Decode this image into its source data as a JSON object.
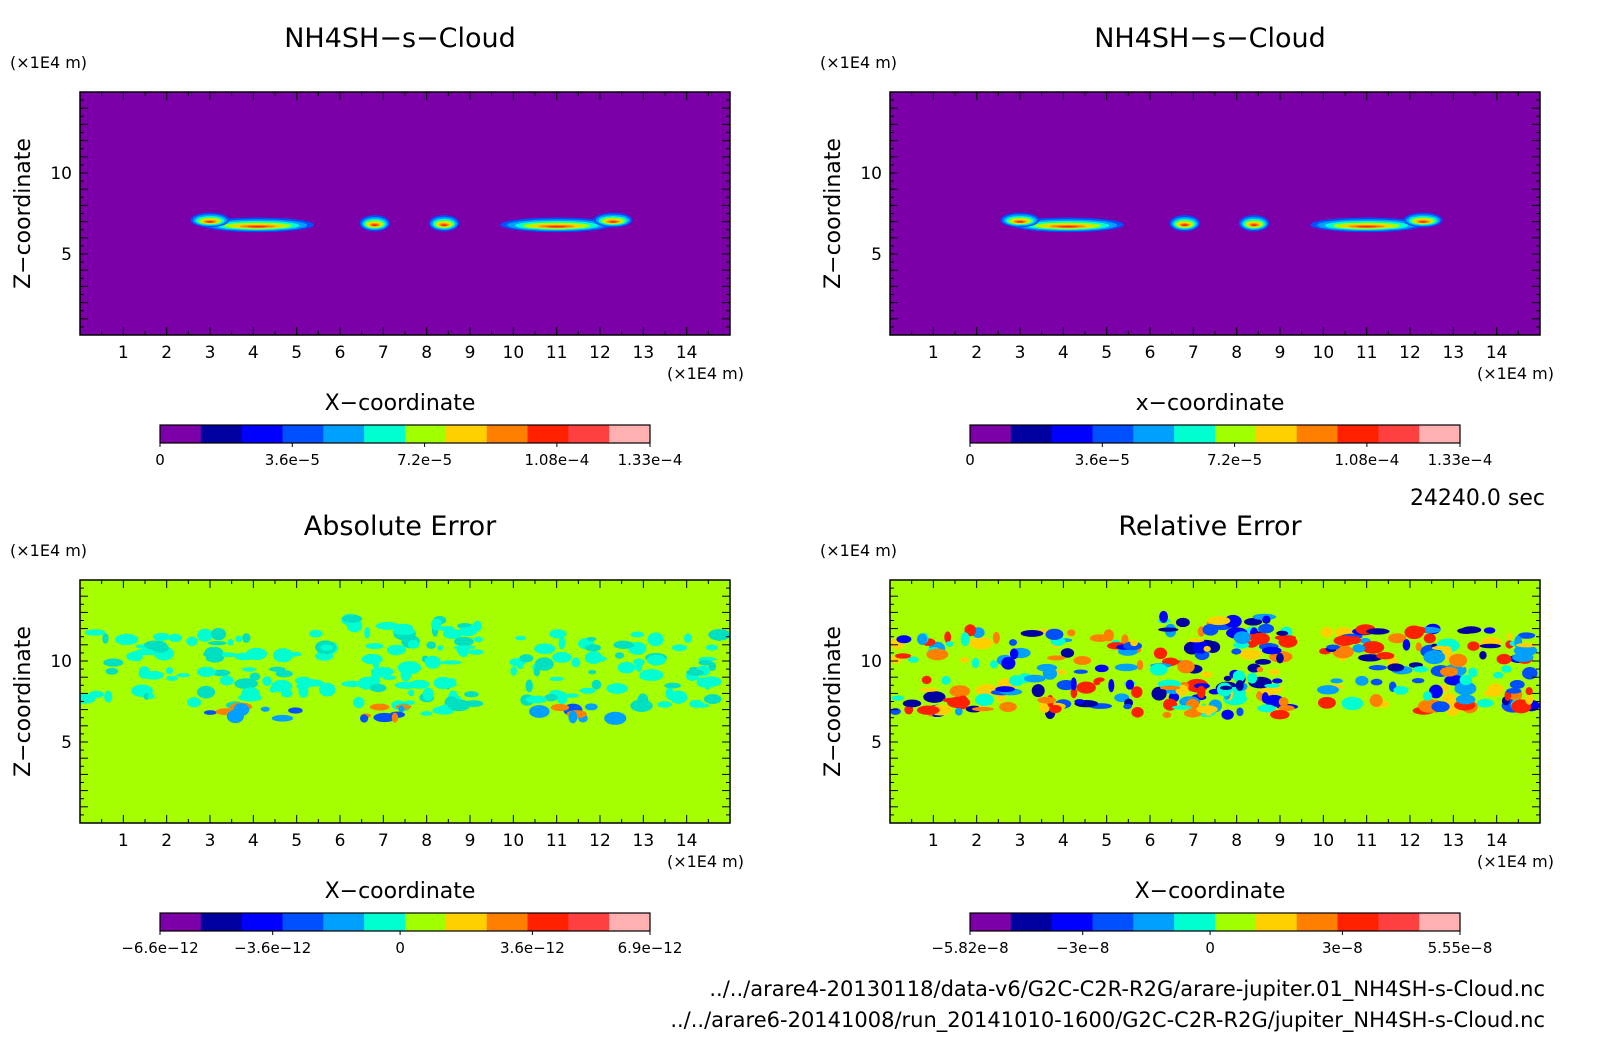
{
  "time_label": "24240.0 sec",
  "files": [
    "../../arare4-20130118/data-v6/G2C-C2R-R2G/arare-jupiter.01_NH4SH-s-Cloud.nc",
    "../../arare6-20141008/run_20141010-1600/G2C-C2R-R2G/jupiter_NH4SH-s-Cloud.nc"
  ],
  "colors": {
    "purple": "#7b00a8",
    "lime": "#a6ff00",
    "frame": "#000000"
  },
  "colorbar_palette": [
    "#7b00a8",
    "#0000a0",
    "#0000ff",
    "#0050ff",
    "#00a0ff",
    "#00ffd0",
    "#a0ff00",
    "#ffd000",
    "#ff8000",
    "#ff2000",
    "#ff4040",
    "#ffb0b0"
  ],
  "chart_data": [
    {
      "type": "heatmap",
      "title": "NH4SH−s−Cloud",
      "xlabel": "X−coordinate",
      "ylabel": "Z−coordinate",
      "x_unit": "(×1E4 m)",
      "y_unit": "(×1E4 m)",
      "xlim": [
        0,
        15
      ],
      "ylim": [
        0,
        15
      ],
      "xticks": [
        "1",
        "2",
        "3",
        "4",
        "5",
        "6",
        "7",
        "8",
        "9",
        "10",
        "11",
        "12",
        "13",
        "14"
      ],
      "yticks": [
        "5",
        "10"
      ],
      "background": "purple",
      "colorbar_ticks": [
        "0",
        "3.6e−5",
        "7.2e−5",
        "1.08e−4",
        "1.33e−4"
      ],
      "colorbar_range": [
        0,
        0.000133
      ]
    },
    {
      "type": "heatmap",
      "title": "NH4SH−s−Cloud",
      "xlabel": "x−coordinate",
      "ylabel": "Z−coordinate",
      "x_unit": "(×1E4 m)",
      "y_unit": "(×1E4 m)",
      "xlim": [
        0,
        15
      ],
      "ylim": [
        0,
        15
      ],
      "xticks": [
        "1",
        "2",
        "3",
        "4",
        "5",
        "6",
        "7",
        "8",
        "9",
        "10",
        "11",
        "12",
        "13",
        "14"
      ],
      "yticks": [
        "5",
        "10"
      ],
      "background": "purple",
      "colorbar_ticks": [
        "0",
        "3.6e−5",
        "7.2e−5",
        "1.08e−4",
        "1.33e−4"
      ],
      "colorbar_range": [
        0,
        0.000133
      ]
    },
    {
      "type": "heatmap",
      "title": "Absolute Error",
      "xlabel": "X−coordinate",
      "ylabel": "Z−coordinate",
      "x_unit": "(×1E4 m)",
      "y_unit": "(×1E4 m)",
      "xlim": [
        0,
        15
      ],
      "ylim": [
        0,
        15
      ],
      "xticks": [
        "1",
        "2",
        "3",
        "4",
        "5",
        "6",
        "7",
        "8",
        "9",
        "10",
        "11",
        "12",
        "13",
        "14"
      ],
      "yticks": [
        "5",
        "10"
      ],
      "background": "lime",
      "colorbar_ticks": [
        "−6.6e−12",
        "−3.6e−12",
        "0",
        "3.6e−12",
        "6.9e−12"
      ],
      "colorbar_range": [
        -6.6e-12,
        6.9e-12
      ]
    },
    {
      "type": "heatmap",
      "title": "Relative Error",
      "xlabel": "X−coordinate",
      "ylabel": "Z−coordinate",
      "x_unit": "(×1E4 m)",
      "y_unit": "(×1E4 m)",
      "xlim": [
        0,
        15
      ],
      "ylim": [
        0,
        15
      ],
      "xticks": [
        "1",
        "2",
        "3",
        "4",
        "5",
        "6",
        "7",
        "8",
        "9",
        "10",
        "11",
        "12",
        "13",
        "14"
      ],
      "yticks": [
        "5",
        "10"
      ],
      "background": "lime",
      "colorbar_ticks": [
        "−5.82e−8",
        "−3e−8",
        "0",
        "3e−8",
        "5.55e−8"
      ],
      "colorbar_range": [
        -5.82e-08,
        5.55e-08
      ]
    }
  ]
}
